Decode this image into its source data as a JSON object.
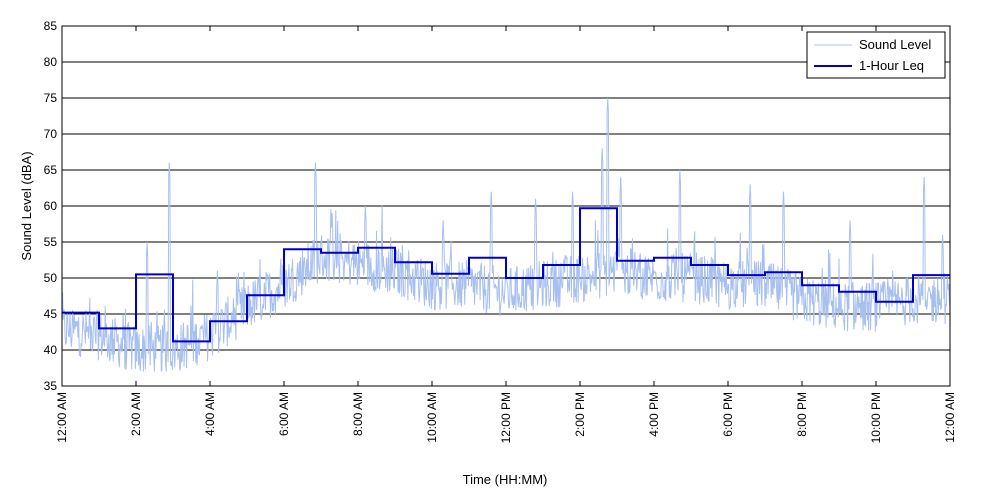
{
  "chart_data": {
    "type": "line",
    "title": "",
    "xlabel": "Time (HH:MM)",
    "ylabel": "Sound Level (dBA)",
    "ylim": [
      35,
      85
    ],
    "y_ticks": [
      35,
      40,
      45,
      50,
      55,
      60,
      65,
      70,
      75,
      80,
      85
    ],
    "xlim_hours": [
      0,
      24
    ],
    "x_ticks": [
      {
        "hour": 0,
        "label": "12:00 AM"
      },
      {
        "hour": 2,
        "label": "2:00 AM"
      },
      {
        "hour": 4,
        "label": "4:00 AM"
      },
      {
        "hour": 6,
        "label": "6:00 AM"
      },
      {
        "hour": 8,
        "label": "8:00 AM"
      },
      {
        "hour": 10,
        "label": "10:00 AM"
      },
      {
        "hour": 12,
        "label": "12:00 PM"
      },
      {
        "hour": 14,
        "label": "2:00 PM"
      },
      {
        "hour": 16,
        "label": "4:00 PM"
      },
      {
        "hour": 18,
        "label": "6:00 PM"
      },
      {
        "hour": 20,
        "label": "8:00 PM"
      },
      {
        "hour": 22,
        "label": "10:00 PM"
      },
      {
        "hour": 24,
        "label": "12:00 AM"
      }
    ],
    "grid": "horizontal",
    "legend_position": "top-right",
    "series": [
      {
        "name": "Sound Level",
        "color": "#a8c0f0",
        "style": "thin line (noisy)",
        "hourly_baseline": [
          43,
          42,
          40,
          40,
          42,
          46,
          49,
          53,
          52,
          51,
          49,
          49,
          48,
          49,
          50,
          51,
          50,
          50,
          49,
          49,
          47,
          46,
          46,
          47
        ],
        "peaks": [
          {
            "hour": 2.3,
            "value": 55
          },
          {
            "hour": 2.9,
            "value": 66
          },
          {
            "hour": 4.2,
            "value": 51
          },
          {
            "hour": 6.85,
            "value": 66
          },
          {
            "hour": 7.3,
            "value": 59
          },
          {
            "hour": 8.2,
            "value": 60
          },
          {
            "hour": 10.3,
            "value": 58
          },
          {
            "hour": 11.6,
            "value": 62
          },
          {
            "hour": 12.8,
            "value": 61
          },
          {
            "hour": 13.8,
            "value": 62
          },
          {
            "hour": 14.6,
            "value": 68
          },
          {
            "hour": 14.75,
            "value": 75
          },
          {
            "hour": 15.1,
            "value": 64
          },
          {
            "hour": 16.7,
            "value": 65
          },
          {
            "hour": 18.6,
            "value": 63
          },
          {
            "hour": 19.5,
            "value": 62
          },
          {
            "hour": 21.3,
            "value": 58
          },
          {
            "hour": 23.3,
            "value": 64
          },
          {
            "hour": 23.8,
            "value": 56
          }
        ]
      },
      {
        "name": "1-Hour Leq",
        "color": "#0000cc",
        "style": "step",
        "hour_start": [
          0,
          1,
          2,
          3,
          4,
          5,
          6,
          7,
          8,
          9,
          10,
          11,
          12,
          13,
          14,
          15,
          16,
          17,
          18,
          19,
          20,
          21,
          22,
          23
        ],
        "values": [
          45.2,
          43.0,
          50.5,
          41.2,
          44.0,
          47.6,
          54.0,
          53.5,
          54.2,
          52.2,
          50.6,
          52.8,
          50.0,
          51.8,
          59.7,
          52.4,
          52.8,
          51.8,
          50.4,
          50.8,
          49.0,
          48.1,
          46.7,
          50.4
        ]
      }
    ]
  }
}
